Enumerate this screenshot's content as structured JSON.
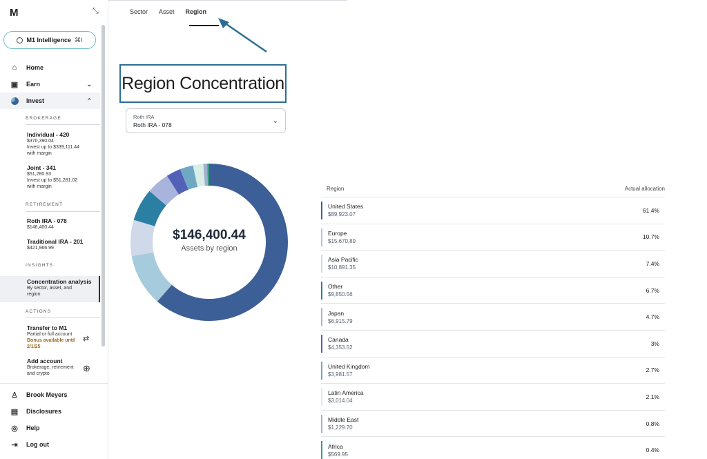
{
  "sidebar": {
    "logo": "M",
    "intelligence": {
      "label": "M1 Intelligence",
      "shortcut": "⌘I"
    },
    "nav": {
      "home": "Home",
      "earn": "Earn",
      "invest": "Invest"
    },
    "brokerage_heading": "BROKERAGE",
    "brokerage": [
      {
        "title": "Individual - 420",
        "balance": "$370,390.04",
        "line1": "Invest up to $339,111.44",
        "line2": "with margin"
      },
      {
        "title": "Joint - 341",
        "balance": "$51,280.93",
        "line1": "Invest up to $51,281.02",
        "line2": "with margin"
      }
    ],
    "retirement_heading": "RETIREMENT",
    "retirement": [
      {
        "title": "Roth IRA - 078",
        "balance": "$146,400.44"
      },
      {
        "title": "Traditional IRA - 201",
        "balance": "$421,966.99"
      }
    ],
    "insights_heading": "INSIGHTS",
    "insight": {
      "title": "Concentration analysis",
      "line1": "By sector, asset, and",
      "line2": "region"
    },
    "actions_heading": "ACTIONS",
    "transfer": {
      "title": "Transfer to M1",
      "line1": "Partial or full account",
      "bonus1": "Bonus available until",
      "bonus2": "2/1/25"
    },
    "add_account": {
      "title": "Add account",
      "line1": "Brokerage, retirement",
      "line2": "and crypto"
    },
    "footer": {
      "user": "Brook Meyers",
      "disclosures": "Disclosures",
      "help": "Help",
      "logout": "Log out"
    }
  },
  "tabs": [
    "Sector",
    "Asset",
    "Region"
  ],
  "active_tab": "Region",
  "page_title": "Region Concentration",
  "account_select": {
    "label": "Roth IRA",
    "value": "Roth IRA - 078"
  },
  "summary": {
    "amount": "$146,400.44",
    "caption": "Assets by region"
  },
  "table": {
    "col_region": "Region",
    "col_allocation": "Actual allocation",
    "rows": [
      {
        "name": "United States",
        "value": "$89,923.07",
        "pct": "61.4%",
        "color": "#3d5f97"
      },
      {
        "name": "Europe",
        "value": "$15,670.89",
        "pct": "10.7%",
        "color": "#a6cbdc"
      },
      {
        "name": "Asia Pacific",
        "value": "$10,891.35",
        "pct": "7.4%",
        "color": "#cfd9ea"
      },
      {
        "name": "Other",
        "value": "$9,850.56",
        "pct": "6.7%",
        "color": "#2a7fa3"
      },
      {
        "name": "Japan",
        "value": "$6,915.79",
        "pct": "4.7%",
        "color": "#a9b4dc"
      },
      {
        "name": "Canada",
        "value": "$4,353.52",
        "pct": "3%",
        "color": "#5360b8"
      },
      {
        "name": "United Kingdom",
        "value": "$3,981.57",
        "pct": "2.7%",
        "color": "#6fa8c2"
      },
      {
        "name": "Latin America",
        "value": "$3,014.04",
        "pct": "2.1%",
        "color": "#d8eee6"
      },
      {
        "name": "Middle East",
        "value": "$1,229.70",
        "pct": "0.8%",
        "color": "#9eb2cc"
      },
      {
        "name": "Africa",
        "value": "$569.95",
        "pct": "0.4%",
        "color": "#3a9a82"
      }
    ]
  },
  "colors": {
    "accent": "#2a6f93",
    "intel_border": "#6fc1c7"
  }
}
